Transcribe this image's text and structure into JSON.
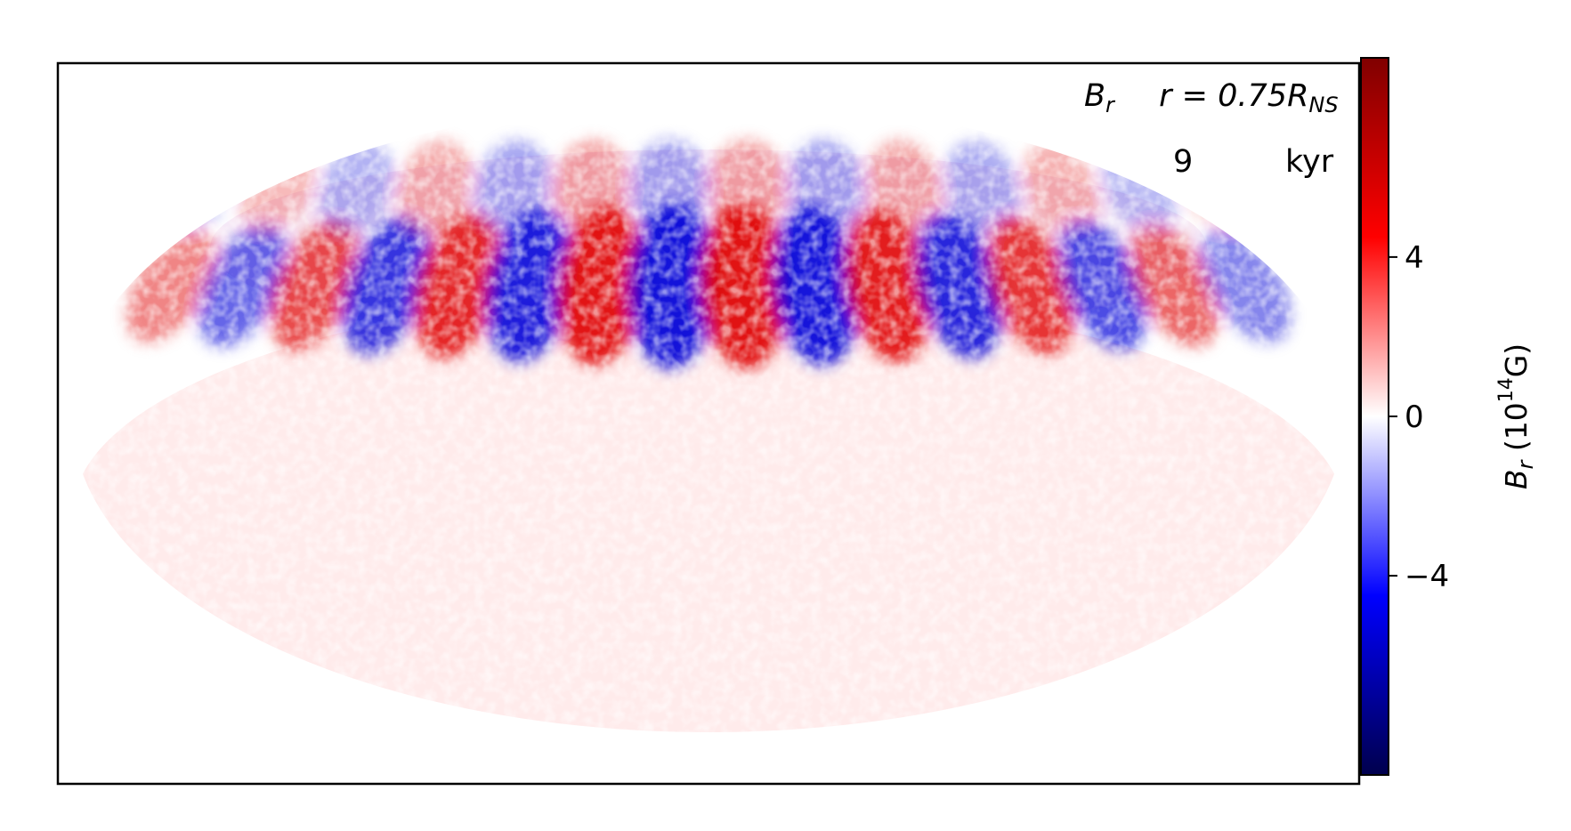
{
  "chart_data": {
    "type": "heatmap",
    "projection": "mollweide",
    "title_parts": {
      "quantity_symbol": "B",
      "quantity_sub": "r",
      "radius_prefix": "r = 0.75",
      "radius_symbol": "R",
      "radius_sub": "NS"
    },
    "time_label": {
      "value": "9",
      "unit": "kyr"
    },
    "colorbar": {
      "colormap": "seismic",
      "range": [
        -9,
        9
      ],
      "ticks": [
        4,
        0,
        -4
      ],
      "tick_labels": [
        "4",
        "0",
        "−4"
      ],
      "label_parts": {
        "symbol": "B",
        "sub": "r",
        "open": "(10",
        "exp": "14",
        "unit": "G)"
      }
    },
    "pattern": {
      "description_values": {
        "north_band_alternating_lobes": 16,
        "peak_abs_value": 8
      }
    },
    "grid": false,
    "colors": {
      "positive": "#cc0000",
      "negative": "#0000cc",
      "zero": "#ffffff"
    }
  }
}
